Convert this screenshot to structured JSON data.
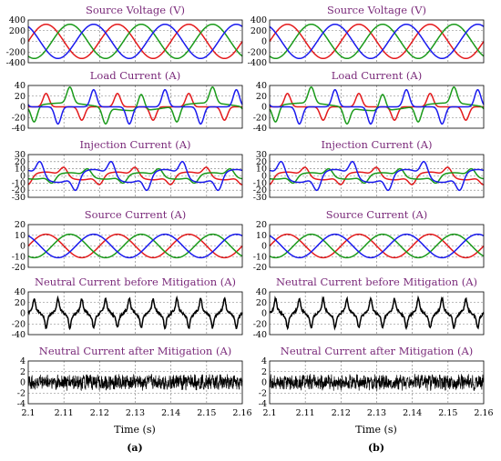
{
  "x_axis": {
    "label": "Time (s)",
    "ticks": [
      "2.1",
      "2.11",
      "2.12",
      "2.13",
      "2.14",
      "2.15",
      "2.16"
    ],
    "range": [
      2.1,
      2.16
    ]
  },
  "columns": [
    "(a)",
    "(b)"
  ],
  "colors": {
    "phase_a": "#e41a1c",
    "phase_b": "#1a9a1a",
    "phase_c": "#1a1aee",
    "neutral": "#000000",
    "title": "#7a2a7a"
  },
  "chart_data": [
    {
      "type": "line",
      "title": "Source Voltage (V)",
      "ylim": [
        -400,
        400
      ],
      "yticks": [
        400,
        200,
        0,
        -200,
        -400
      ],
      "series": [
        {
          "shape": "sine",
          "amplitude": 320,
          "phase_deg": 0,
          "color": "#e41a1c"
        },
        {
          "shape": "sine",
          "amplitude": 320,
          "phase_deg": -120,
          "color": "#1a9a1a"
        },
        {
          "shape": "sine",
          "amplitude": 320,
          "phase_deg": 120,
          "color": "#1a1aee"
        }
      ]
    },
    {
      "type": "line",
      "title": "Load Current (A)",
      "ylim": [
        -40,
        40
      ],
      "yticks": [
        40,
        20,
        0,
        -20,
        -40
      ],
      "series": [
        {
          "shape": "pulse",
          "peak": 25,
          "phase_deg": 0,
          "color": "#e41a1c"
        },
        {
          "shape": "pulse_hump",
          "peak": 30,
          "hump": 12,
          "phase_deg": -120,
          "color": "#1a9a1a"
        },
        {
          "shape": "pulse",
          "peak": 32,
          "phase_deg": 120,
          "color": "#1a1aee"
        }
      ]
    },
    {
      "type": "line",
      "title": "Injection Current (A)",
      "ylim": [
        -30,
        30
      ],
      "yticks": [
        30,
        20,
        10,
        0,
        -10,
        -20,
        -30
      ],
      "series": [
        {
          "shape": "injection",
          "amplitude": 12,
          "phase_deg": 0,
          "color": "#e41a1c"
        },
        {
          "shape": "injection",
          "amplitude": 10,
          "phase_deg": -120,
          "color": "#1a9a1a"
        },
        {
          "shape": "injection",
          "amplitude": 20,
          "phase_deg": 120,
          "color": "#1a1aee"
        }
      ]
    },
    {
      "type": "line",
      "title": "Source Current (A)",
      "ylim": [
        -20,
        20
      ],
      "yticks": [
        20,
        10,
        0,
        -10,
        -20
      ],
      "series": [
        {
          "shape": "sine",
          "amplitude": 11,
          "phase_deg": 0,
          "color": "#e41a1c"
        },
        {
          "shape": "sine",
          "amplitude": 11,
          "phase_deg": -120,
          "color": "#1a9a1a"
        },
        {
          "shape": "sine",
          "amplitude": 11,
          "phase_deg": 120,
          "color": "#1a1aee"
        }
      ]
    },
    {
      "type": "line",
      "title": "Neutral Current before Mitigation (A)",
      "ylim": [
        -40,
        40
      ],
      "yticks": [
        40,
        20,
        0,
        -20,
        -40
      ],
      "series": [
        {
          "shape": "neutral",
          "amplitude": 22,
          "color": "#000000"
        }
      ]
    },
    {
      "type": "line",
      "title": "Neutral Current after Mitigation (A)",
      "ylim": [
        -4,
        4
      ],
      "yticks": [
        4,
        2,
        0,
        -2,
        -4
      ],
      "series": [
        {
          "shape": "noise",
          "amplitude": 1.3,
          "color": "#000000"
        }
      ]
    }
  ]
}
